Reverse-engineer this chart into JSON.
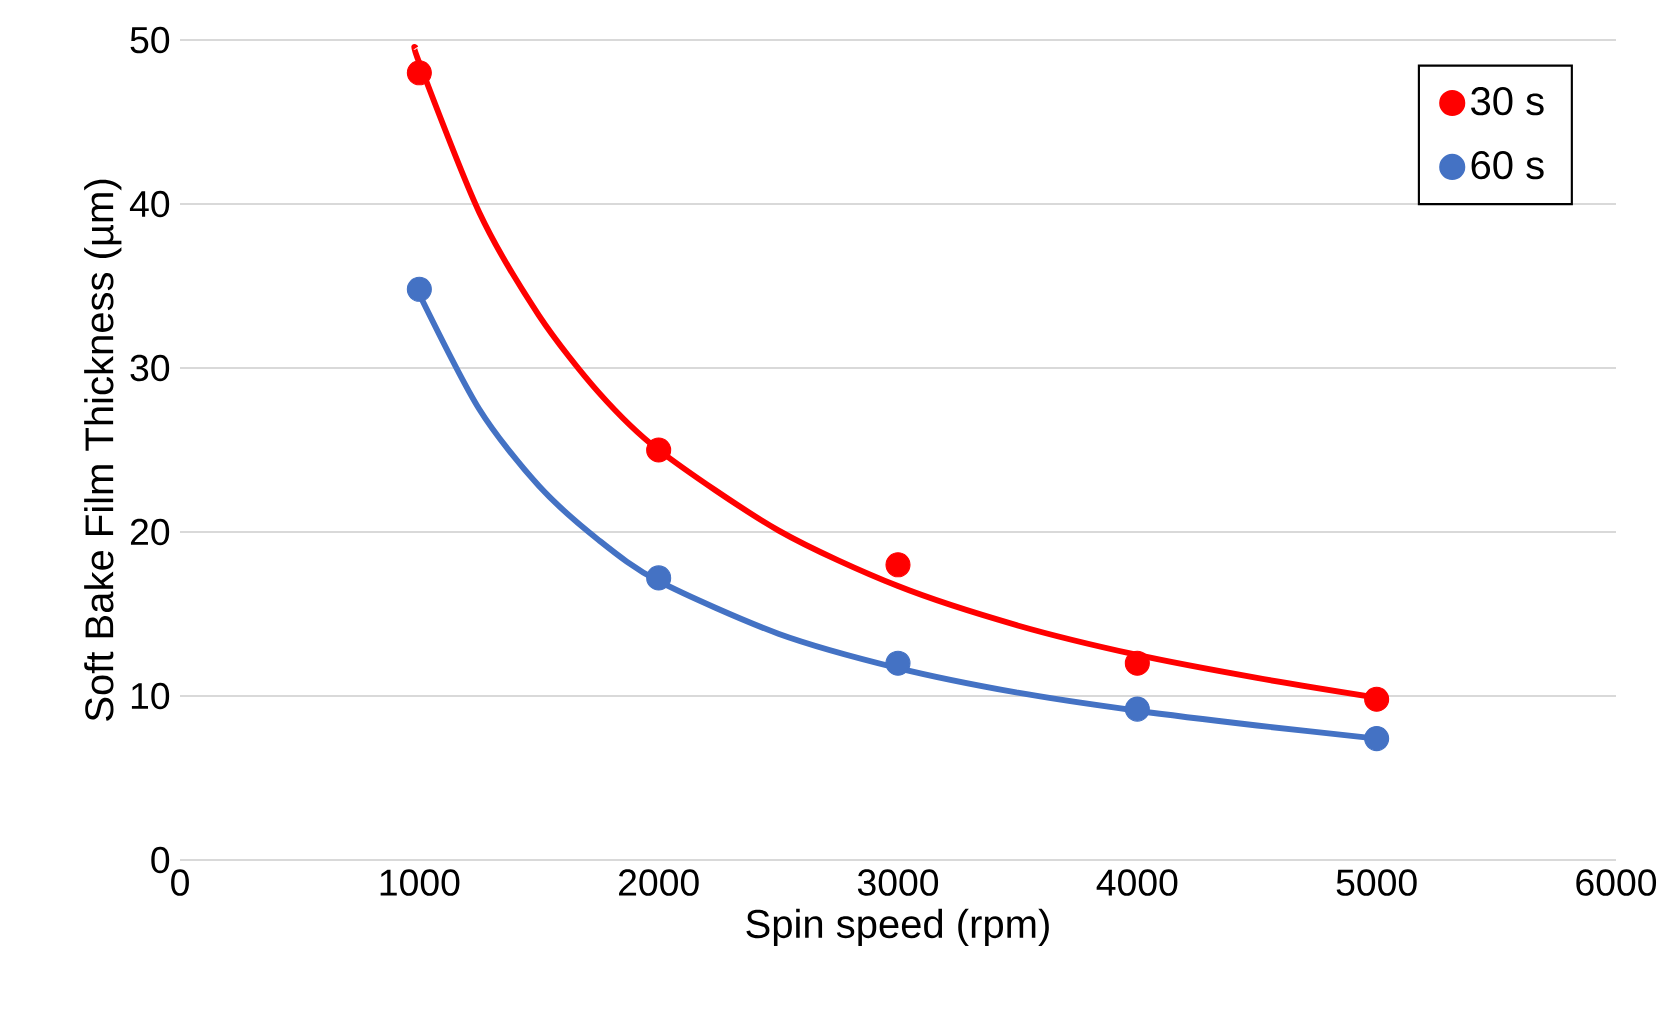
{
  "chart_data": {
    "type": "scatter",
    "xlabel": "Spin speed (rpm)",
    "ylabel": "Soft Bake Film Thickness (µm)",
    "x": [
      1000,
      2000,
      3000,
      4000,
      5000
    ],
    "series": [
      {
        "name": "30 s",
        "color": "#ff0000",
        "marker": "circle",
        "values": [
          48,
          25,
          18,
          12,
          9.8
        ]
      },
      {
        "name": "60 s",
        "color": "#4472c4",
        "marker": "circle",
        "values": [
          34.8,
          17.2,
          12,
          9.2,
          7.4
        ]
      },
      {
        "type": "line",
        "color": "#ff0000",
        "marker": "none",
        "x": [
          985,
          1000,
          1250,
          1500,
          1750,
          2000,
          2500,
          3000,
          3500,
          4000,
          4500,
          5000
        ],
        "values": [
          49.5,
          48.6,
          39.5,
          33.2,
          28.5,
          25,
          20.1,
          16.7,
          14.3,
          12.5,
          11.1,
          9.9
        ]
      },
      {
        "type": "line",
        "color": "#4472c4",
        "marker": "none",
        "x": [
          1000,
          1250,
          1500,
          1750,
          2000,
          2500,
          3000,
          3500,
          4000,
          4500,
          5000
        ],
        "values": [
          34.5,
          27.5,
          22.8,
          19.5,
          17,
          13.8,
          11.7,
          10.2,
          9.1,
          8.2,
          7.4
        ]
      }
    ],
    "xlim": [
      0,
      6000
    ],
    "xticks": [
      0,
      1000,
      2000,
      3000,
      4000,
      5000,
      6000
    ],
    "ylim": [
      0,
      50
    ],
    "yticks": [
      0,
      10,
      20,
      30,
      40,
      50
    ],
    "grid": "y",
    "legend": "top right"
  }
}
